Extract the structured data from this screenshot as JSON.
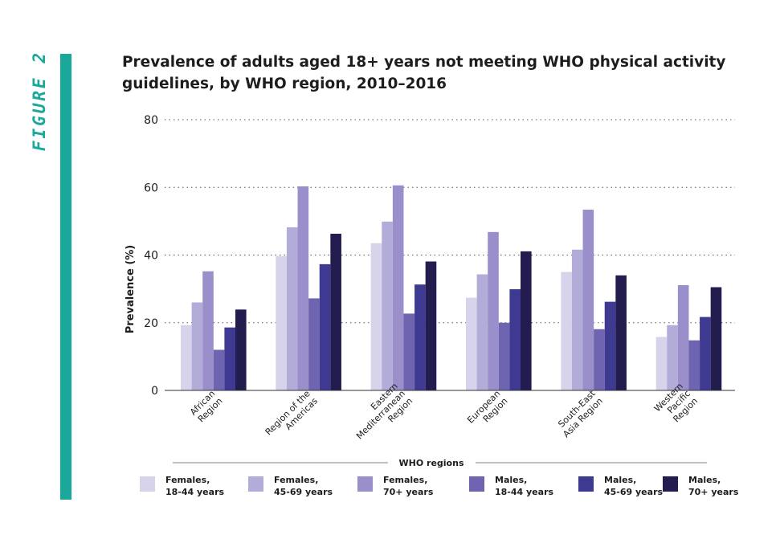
{
  "figure_label": "FIGURE 2",
  "colors": {
    "accent": "#1aa89a",
    "series": [
      "#d7d3eb",
      "#b2acd9",
      "#9a8fcb",
      "#6e64b0",
      "#3e3a91",
      "#221c4f"
    ]
  },
  "chart_data": {
    "type": "bar",
    "title": "Prevalence of adults aged 18+ years not meeting WHO physical activity guidelines, by WHO region, 2010–2016",
    "xlabel": "WHO regions",
    "ylabel": "Prevalence (%)",
    "ylim": [
      0,
      80
    ],
    "yticks": [
      "0",
      "20",
      "40",
      "60",
      "80"
    ],
    "grid": "dotted-horizontal",
    "legend_position": "bottom",
    "categories": [
      "African\nRegion",
      "Region of the\nAmericas",
      "Eastern\nMediterranean\nRegion",
      "European\nRegion",
      "South-East\nAsia Region",
      "Western\nPacific\nRegion"
    ],
    "series": [
      {
        "name": "Females,\n18-44 years",
        "values": [
          19.3,
          39.7,
          43.5,
          27.4,
          35.0,
          15.8
        ]
      },
      {
        "name": "Females,\n45-69 years",
        "values": [
          26.0,
          48.2,
          49.9,
          34.3,
          41.6,
          19.3
        ]
      },
      {
        "name": "Females,\n70+ years",
        "values": [
          35.2,
          60.3,
          60.6,
          46.8,
          53.4,
          31.1
        ]
      },
      {
        "name": "Males,\n18-44 years",
        "values": [
          12.0,
          27.2,
          22.7,
          20.0,
          18.1,
          14.8
        ]
      },
      {
        "name": "Males,\n45-69 years",
        "values": [
          18.6,
          37.3,
          31.3,
          29.9,
          26.2,
          21.7
        ]
      },
      {
        "name": "Males,\n70+ years",
        "values": [
          23.9,
          46.3,
          38.1,
          41.1,
          34.0,
          30.5
        ]
      }
    ]
  }
}
